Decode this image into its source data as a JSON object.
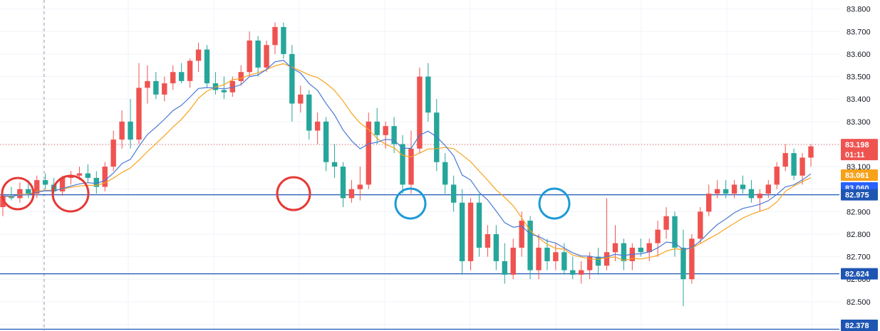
{
  "chart_data": {
    "type": "candlestick",
    "ylim": [
      82.37,
      83.84
    ],
    "y_ticks": [
      "83.800",
      "83.700",
      "83.600",
      "83.500",
      "83.400",
      "83.300",
      "83.200",
      "83.100",
      "83.000",
      "82.900",
      "82.800",
      "82.700",
      "82.600",
      "82.500",
      "82.400"
    ],
    "price_tag": {
      "value": "83.198",
      "countdown": "01:11",
      "color": "#ef5350"
    },
    "ma_tags": [
      {
        "value": "83.061",
        "color": "#f7a21b"
      },
      {
        "value": "83.060",
        "color": "#2962ff"
      }
    ],
    "horizontal_lines": [
      {
        "value": "82.975",
        "price": 82.975,
        "color": "#1e55b3"
      },
      {
        "value": "82.624",
        "price": 82.624,
        "color": "#1e55b3"
      },
      {
        "value": "82.378",
        "price": 82.378,
        "color": "#1e55b3"
      }
    ],
    "colors": {
      "up": "#ef5350",
      "down": "#26a69a",
      "ma_fast": "#4a78d6",
      "ma_slow": "#f7a21b",
      "red_circle": "#e53935",
      "blue_circle": "#1e9bd7"
    },
    "candles": [
      [
        82.92,
        82.98,
        82.88,
        82.97
      ],
      [
        82.97,
        83.01,
        82.95,
        82.96
      ],
      [
        82.96,
        83.03,
        82.94,
        83.0
      ],
      [
        83.0,
        83.04,
        82.96,
        82.98
      ],
      [
        82.98,
        83.06,
        82.96,
        83.04
      ],
      [
        83.04,
        83.07,
        83.0,
        83.02
      ],
      [
        83.02,
        83.05,
        82.98,
        82.99
      ],
      [
        82.99,
        83.06,
        82.97,
        83.05
      ],
      [
        83.05,
        83.08,
        83.02,
        83.06
      ],
      [
        83.06,
        83.1,
        83.04,
        83.07
      ],
      [
        83.07,
        83.11,
        83.03,
        83.05
      ],
      [
        83.05,
        83.08,
        82.98,
        83.01
      ],
      [
        83.01,
        83.12,
        82.99,
        83.1
      ],
      [
        83.1,
        83.26,
        83.08,
        83.22
      ],
      [
        83.22,
        83.35,
        83.18,
        83.3
      ],
      [
        83.3,
        83.4,
        83.18,
        83.22
      ],
      [
        83.22,
        83.56,
        83.2,
        83.45
      ],
      [
        83.45,
        83.55,
        83.38,
        83.48
      ],
      [
        83.48,
        83.52,
        83.4,
        83.42
      ],
      [
        83.42,
        83.5,
        83.39,
        83.47
      ],
      [
        83.47,
        83.55,
        83.44,
        83.52
      ],
      [
        83.52,
        83.56,
        83.47,
        83.48
      ],
      [
        83.48,
        83.58,
        83.45,
        83.57
      ],
      [
        83.57,
        83.65,
        83.52,
        83.62
      ],
      [
        83.62,
        83.64,
        83.45,
        83.47
      ],
      [
        83.47,
        83.52,
        83.42,
        83.44
      ],
      [
        83.44,
        83.5,
        83.4,
        83.43
      ],
      [
        83.43,
        83.5,
        83.41,
        83.48
      ],
      [
        83.48,
        83.55,
        83.46,
        83.52
      ],
      [
        83.52,
        83.7,
        83.5,
        83.66
      ],
      [
        83.66,
        83.68,
        83.5,
        83.54
      ],
      [
        83.54,
        83.66,
        83.52,
        83.64
      ],
      [
        83.64,
        83.74,
        83.6,
        83.72
      ],
      [
        83.72,
        83.74,
        83.58,
        83.6
      ],
      [
        83.6,
        83.64,
        83.3,
        83.38
      ],
      [
        83.38,
        83.46,
        83.34,
        83.42
      ],
      [
        83.42,
        83.44,
        83.22,
        83.26
      ],
      [
        83.26,
        83.34,
        83.2,
        83.3
      ],
      [
        83.3,
        83.32,
        83.08,
        83.12
      ],
      [
        83.12,
        83.2,
        83.05,
        83.1
      ],
      [
        83.1,
        83.12,
        82.92,
        82.96
      ],
      [
        82.96,
        83.04,
        82.94,
        83.0
      ],
      [
        83.0,
        83.1,
        82.95,
        83.02
      ],
      [
        83.02,
        83.34,
        83.0,
        83.3
      ],
      [
        83.3,
        83.36,
        83.2,
        83.24
      ],
      [
        83.24,
        83.3,
        83.18,
        83.28
      ],
      [
        83.28,
        83.32,
        83.16,
        83.2
      ],
      [
        83.2,
        83.24,
        82.98,
        83.02
      ],
      [
        83.02,
        83.26,
        82.98,
        83.18
      ],
      [
        83.18,
        83.54,
        83.16,
        83.5
      ],
      [
        83.5,
        83.56,
        83.3,
        83.34
      ],
      [
        83.34,
        83.4,
        83.08,
        83.12
      ],
      [
        83.12,
        83.16,
        82.98,
        83.02
      ],
      [
        83.02,
        83.06,
        82.9,
        82.94
      ],
      [
        82.94,
        83.0,
        82.62,
        82.68
      ],
      [
        82.68,
        82.96,
        82.64,
        82.94
      ],
      [
        82.94,
        82.98,
        82.7,
        82.74
      ],
      [
        82.74,
        82.84,
        82.7,
        82.8
      ],
      [
        82.8,
        82.84,
        82.64,
        82.68
      ],
      [
        82.68,
        82.76,
        82.58,
        82.62
      ],
      [
        82.62,
        82.78,
        82.6,
        82.74
      ],
      [
        82.74,
        82.9,
        82.7,
        82.86
      ],
      [
        82.86,
        82.88,
        82.6,
        82.64
      ],
      [
        82.64,
        82.8,
        82.6,
        82.74
      ],
      [
        82.74,
        82.78,
        82.64,
        82.68
      ],
      [
        82.68,
        82.76,
        82.64,
        82.72
      ],
      [
        82.72,
        82.76,
        82.62,
        82.64
      ],
      [
        82.64,
        82.7,
        82.6,
        82.62
      ],
      [
        82.62,
        82.68,
        82.58,
        82.64
      ],
      [
        82.64,
        82.72,
        82.6,
        82.7
      ],
      [
        82.7,
        82.74,
        82.62,
        82.66
      ],
      [
        82.66,
        82.96,
        82.64,
        82.72
      ],
      [
        82.72,
        82.84,
        82.68,
        82.76
      ],
      [
        82.76,
        82.78,
        82.64,
        82.68
      ],
      [
        82.68,
        82.76,
        82.64,
        82.74
      ],
      [
        82.74,
        82.78,
        82.7,
        82.72
      ],
      [
        82.72,
        82.78,
        82.68,
        82.76
      ],
      [
        82.76,
        82.86,
        82.7,
        82.82
      ],
      [
        82.82,
        82.92,
        82.78,
        82.88
      ],
      [
        82.88,
        82.9,
        82.7,
        82.74
      ],
      [
        82.74,
        82.82,
        82.48,
        82.6
      ],
      [
        82.6,
        82.8,
        82.58,
        82.78
      ],
      [
        82.78,
        82.92,
        82.76,
        82.9
      ],
      [
        82.9,
        83.02,
        82.88,
        82.98
      ],
      [
        82.98,
        83.04,
        82.96,
        83.0
      ],
      [
        83.0,
        83.04,
        82.96,
        82.98
      ],
      [
        82.98,
        83.04,
        82.96,
        83.02
      ],
      [
        83.02,
        83.06,
        82.98,
        83.0
      ],
      [
        83.0,
        83.04,
        82.94,
        82.96
      ],
      [
        82.96,
        83.0,
        82.9,
        82.98
      ],
      [
        82.98,
        83.04,
        82.96,
        83.02
      ],
      [
        83.02,
        83.12,
        83.0,
        83.1
      ],
      [
        83.1,
        83.2,
        83.08,
        83.16
      ],
      [
        83.16,
        83.18,
        83.04,
        83.06
      ],
      [
        83.06,
        83.16,
        83.02,
        83.14
      ],
      [
        83.14,
        83.2,
        83.1,
        83.19
      ]
    ]
  }
}
